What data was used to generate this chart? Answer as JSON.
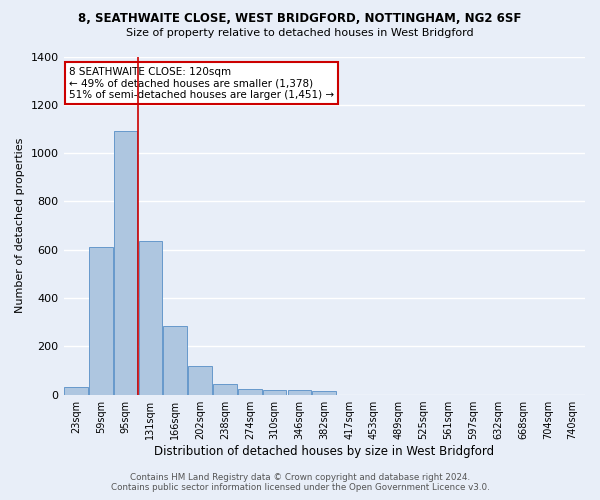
{
  "title_line1": "8, SEATHWAITE CLOSE, WEST BRIDGFORD, NOTTINGHAM, NG2 6SF",
  "title_line2": "Size of property relative to detached houses in West Bridgford",
  "xlabel": "Distribution of detached houses by size in West Bridgford",
  "ylabel": "Number of detached properties",
  "footer_line1": "Contains HM Land Registry data © Crown copyright and database right 2024.",
  "footer_line2": "Contains public sector information licensed under the Open Government Licence v3.0.",
  "bar_labels": [
    "23sqm",
    "59sqm",
    "95sqm",
    "131sqm",
    "166sqm",
    "202sqm",
    "238sqm",
    "274sqm",
    "310sqm",
    "346sqm",
    "382sqm",
    "417sqm",
    "453sqm",
    "489sqm",
    "525sqm",
    "561sqm",
    "597sqm",
    "632sqm",
    "668sqm",
    "704sqm",
    "740sqm"
  ],
  "bar_values": [
    30,
    610,
    1090,
    635,
    285,
    120,
    45,
    25,
    20,
    18,
    15,
    0,
    0,
    0,
    0,
    0,
    0,
    0,
    0,
    0,
    0
  ],
  "bar_color": "#aec6e0",
  "bar_edge_color": "#6699cc",
  "bg_color": "#e8eef8",
  "grid_color": "#ffffff",
  "vline_x": 2.5,
  "vline_color": "#cc0000",
  "annotation_text": "8 SEATHWAITE CLOSE: 120sqm\n← 49% of detached houses are smaller (1,378)\n51% of semi-detached houses are larger (1,451) →",
  "annotation_box_color": "#ffffff",
  "annotation_edge_color": "#cc0000",
  "ylim": [
    0,
    1400
  ],
  "yticks": [
    0,
    200,
    400,
    600,
    800,
    1000,
    1200,
    1400
  ]
}
